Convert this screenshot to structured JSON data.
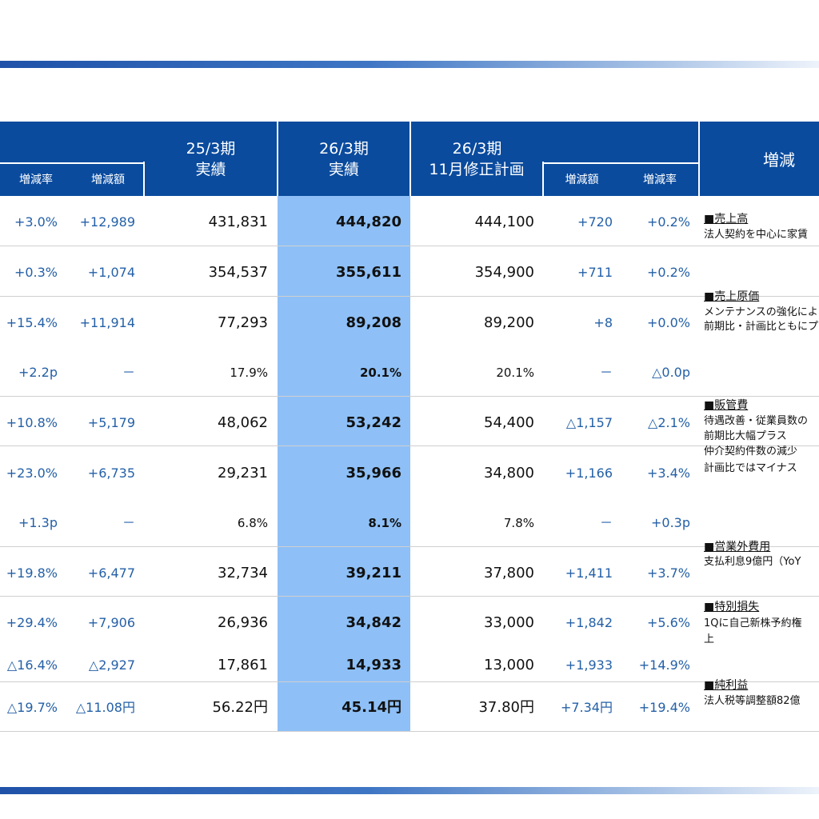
{
  "header": {
    "col_25_label": [
      "25/3期",
      "実績"
    ],
    "col_26_label": [
      "26/3期",
      "実績"
    ],
    "col_plan_label": [
      "26/3期",
      "11月修正計画"
    ],
    "col_notes_label": "増減",
    "sub_rate_left": "増減率",
    "sub_amount_left": "増減額",
    "sub_amount_right": "増減額",
    "sub_rate_right": "増減率"
  },
  "rows": [
    {
      "rate_l": "+3.0%",
      "amt_l": "+12,989",
      "prev": "431,831",
      "actual": "444,820",
      "plan": "444,100",
      "amt_r": "+720",
      "rate_r": "+0.2%"
    },
    {
      "rate_l": "+0.3%",
      "amt_l": "+1,074",
      "prev": "354,537",
      "actual": "355,611",
      "plan": "354,900",
      "amt_r": "+711",
      "rate_r": "+0.2%"
    },
    {
      "rate_l": "+15.4%",
      "amt_l": "+11,914",
      "prev": "77,293",
      "actual": "89,208",
      "plan": "89,200",
      "amt_r": "+8",
      "rate_r": "+0.0%"
    },
    {
      "rate_l": "+2.2p",
      "amt_l": "－",
      "prev": "17.9%",
      "actual": "20.1%",
      "plan": "20.1%",
      "amt_r": "－",
      "rate_r": "△0.0p"
    },
    {
      "rate_l": "+10.8%",
      "amt_l": "+5,179",
      "prev": "48,062",
      "actual": "53,242",
      "plan": "54,400",
      "amt_r": "△1,157",
      "rate_r": "△2.1%"
    },
    {
      "rate_l": "+23.0%",
      "amt_l": "+6,735",
      "prev": "29,231",
      "actual": "35,966",
      "plan": "34,800",
      "amt_r": "+1,166",
      "rate_r": "+3.4%"
    },
    {
      "rate_l": "+1.3p",
      "amt_l": "－",
      "prev": "6.8%",
      "actual": "8.1%",
      "plan": "7.8%",
      "amt_r": "－",
      "rate_r": "+0.3p"
    },
    {
      "rate_l": "+19.8%",
      "amt_l": "+6,477",
      "prev": "32,734",
      "actual": "39,211",
      "plan": "37,800",
      "amt_r": "+1,411",
      "rate_r": "+3.7%"
    },
    {
      "rate_l": "+29.4%",
      "amt_l": "+7,906",
      "prev": "26,936",
      "actual": "34,842",
      "plan": "33,000",
      "amt_r": "+1,842",
      "rate_r": "+5.6%"
    },
    {
      "rate_l": "△16.4%",
      "amt_l": "△2,927",
      "prev": "17,861",
      "actual": "14,933",
      "plan": "13,000",
      "amt_r": "+1,933",
      "rate_r": "+14.9%"
    },
    {
      "rate_l": "△19.7%",
      "amt_l": "△11.08円",
      "prev": "56.22円",
      "actual": "45.14円",
      "plan": "37.80円",
      "amt_r": "+7.34円",
      "rate_r": "+19.4%"
    }
  ],
  "notes": [
    {
      "head": "■売上高",
      "lines": [
        "法人契約を中心に家賃"
      ]
    },
    {
      "head": "■売上原価",
      "lines": [
        "メンテナンスの強化により",
        "前期比・計画比ともにプ"
      ]
    },
    {
      "head": "■販管費",
      "lines": [
        "待遇改善・従業員数の",
        "前期比大幅プラス",
        "仲介契約件数の減少",
        "計画比ではマイナス"
      ]
    },
    {
      "head": "■営業外費用",
      "lines": [
        "支払利息9億円（YoY"
      ]
    },
    {
      "head": "■特別損失",
      "lines": [
        "1Qに自己新株予約権",
        "上"
      ]
    },
    {
      "head": "■純利益",
      "lines": [
        "法人税等調整額82億"
      ]
    }
  ]
}
